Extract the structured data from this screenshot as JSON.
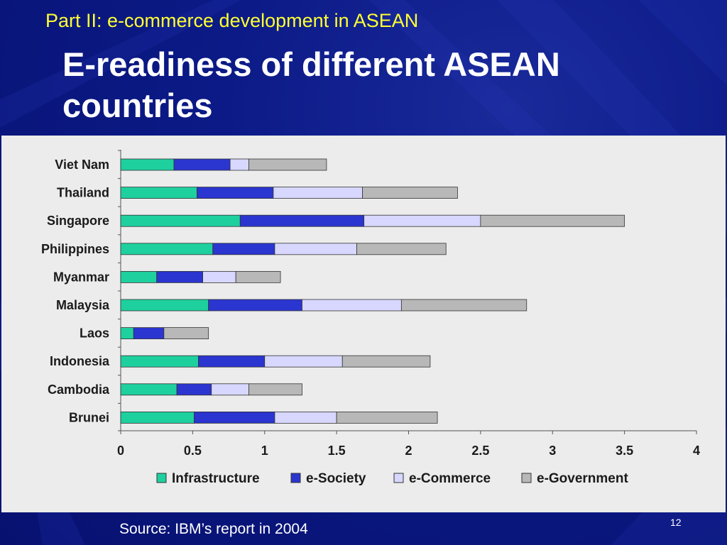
{
  "slide": {
    "part_title": "Part II: e-commerce development in ASEAN",
    "title": "E-readiness of different ASEAN countries",
    "source": "Source: IBM’s report in 2004",
    "page_number": "12"
  },
  "colors": {
    "background": "#0b1a86",
    "part_title": "#ffff33",
    "title": "#ffffff",
    "panel": "#ececec"
  },
  "chart_data": {
    "type": "bar",
    "orientation": "horizontal",
    "stacked": true,
    "title": "",
    "xlabel": "",
    "ylabel": "",
    "xlim": [
      0,
      4
    ],
    "xticks": [
      "0",
      "0.5",
      "1",
      "1.5",
      "2",
      "2.5",
      "3",
      "3.5",
      "4"
    ],
    "grid": false,
    "legend_position": "bottom",
    "categories": [
      "Viet Nam",
      "Thailand",
      "Singapore",
      "Philippines",
      "Myanmar",
      "Malaysia",
      "Laos",
      "Indonesia",
      "Cambodia",
      "Brunei"
    ],
    "series": [
      {
        "name": "Infrastructure",
        "color": "#1fd09f",
        "values": [
          0.37,
          0.53,
          0.83,
          0.64,
          0.25,
          0.61,
          0.09,
          0.54,
          0.39,
          0.51
        ]
      },
      {
        "name": "e-Society",
        "color": "#2b35cf",
        "values": [
          0.39,
          0.53,
          0.86,
          0.43,
          0.32,
          0.65,
          0.21,
          0.46,
          0.24,
          0.56
        ]
      },
      {
        "name": "e-Commerce",
        "color": "#d7d7ff",
        "values": [
          0.13,
          0.62,
          0.81,
          0.57,
          0.23,
          0.69,
          0.0,
          0.54,
          0.26,
          0.43
        ]
      },
      {
        "name": "e-Government",
        "color": "#b8b8b8",
        "values": [
          0.54,
          0.66,
          1.0,
          0.62,
          0.31,
          0.87,
          0.31,
          0.61,
          0.37,
          0.7
        ]
      }
    ]
  }
}
